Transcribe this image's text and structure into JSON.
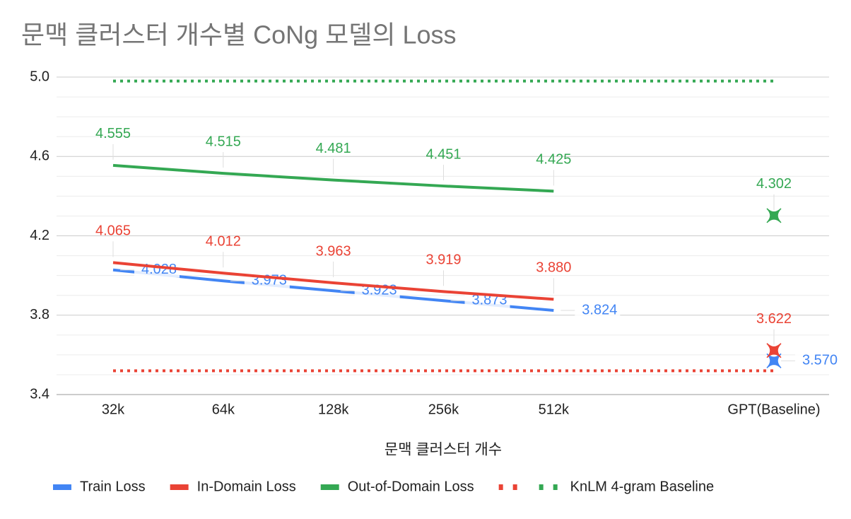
{
  "chart_data": {
    "type": "line",
    "title": "문맥 클러스터 개수별 CoNg 모델의 Loss",
    "x_label": "문맥 클러스터 개수",
    "categories": [
      "32k",
      "64k",
      "128k",
      "256k",
      "512k",
      null,
      "GPT(Baseline)"
    ],
    "series": [
      {
        "name": "Train Loss",
        "color": "#4285f4",
        "values": [
          4.028,
          3.973,
          3.923,
          3.873,
          3.824,
          null,
          3.57
        ],
        "value_labels": [
          "4.028",
          "3.973",
          "3.923",
          "3.873",
          "3.824",
          null,
          "3.570"
        ]
      },
      {
        "name": "In-Domain Loss",
        "color": "#ea4335",
        "values": [
          4.065,
          4.012,
          3.963,
          3.919,
          3.88,
          null,
          3.622
        ],
        "value_labels": [
          "4.065",
          "4.012",
          "3.963",
          "3.919",
          "3.880",
          null,
          "3.622"
        ]
      },
      {
        "name": "Out-of-Domain Loss",
        "color": "#34a853",
        "values": [
          4.555,
          4.515,
          4.481,
          4.451,
          4.425,
          null,
          4.302
        ],
        "value_labels": [
          "4.555",
          "4.515",
          "4.481",
          "4.451",
          "4.425",
          null,
          "4.302"
        ]
      }
    ],
    "baseline": {
      "name": "KnLM 4-gram Baseline",
      "lines": [
        {
          "color": "#ea4335",
          "value": 3.52
        },
        {
          "color": "#34a853",
          "value": 4.98
        }
      ]
    },
    "ylim": [
      3.4,
      5.0
    ],
    "yticks": [
      3.4,
      3.8,
      4.2,
      4.6,
      {
        "value": 5,
        "label": "5.0"
      }
    ],
    "minor_yticks": [
      3.5,
      3.6,
      3.7,
      3.9,
      4.0,
      4.1,
      4.3,
      4.4,
      4.5,
      4.7,
      4.8,
      4.9
    ],
    "grid": true,
    "legend": "bottom"
  }
}
